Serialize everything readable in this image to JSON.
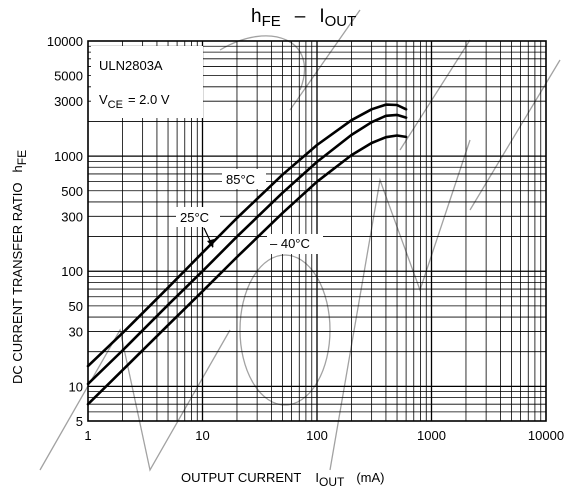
{
  "chart_data": {
    "type": "line",
    "title_main": "h",
    "title_main_sub": "FE",
    "title_sep": "–",
    "title_second": "I",
    "title_second_sub": "OUT",
    "xlabel": "OUTPUT CURRENT",
    "xlabel_symbol": "I",
    "xlabel_symbol_sub": "OUT",
    "xlabel_unit": "(mA)",
    "ylabel": "DC CURRENT TRANSFER RATIO",
    "ylabel_symbol": "h",
    "ylabel_symbol_sub": "FE",
    "x_scale": "log",
    "y_scale": "log",
    "xlim": [
      1,
      10000
    ],
    "ylim": [
      5,
      10000
    ],
    "grid": true,
    "x_ticks": [
      {
        "value": 1,
        "label": "1"
      },
      {
        "value": 10,
        "label": "10"
      },
      {
        "value": 100,
        "label": "100"
      },
      {
        "value": 1000,
        "label": "1000"
      },
      {
        "value": 10000,
        "label": "10000"
      }
    ],
    "y_ticks": [
      {
        "value": 5,
        "label": "5"
      },
      {
        "value": 10,
        "label": "10"
      },
      {
        "value": 30,
        "label": "30"
      },
      {
        "value": 50,
        "label": "50"
      },
      {
        "value": 100,
        "label": "100"
      },
      {
        "value": 300,
        "label": "300"
      },
      {
        "value": 500,
        "label": "500"
      },
      {
        "value": 1000,
        "label": "1000"
      },
      {
        "value": 3000,
        "label": "3000"
      },
      {
        "value": 5000,
        "label": "5000"
      },
      {
        "value": 10000,
        "label": "10000"
      }
    ],
    "annotation": {
      "part": "ULN2803A",
      "condition_symbol": "V",
      "condition_symbol_sub": "CE",
      "condition_value": "= 2.0 V"
    },
    "series": [
      {
        "name": "85°C",
        "x": [
          1,
          2,
          5,
          10,
          20,
          50,
          100,
          200,
          300,
          400,
          500,
          600
        ],
        "y": [
          15,
          29,
          72,
          145,
          290,
          690,
          1250,
          2050,
          2550,
          2800,
          2780,
          2550
        ]
      },
      {
        "name": "25°C",
        "x": [
          1,
          2,
          5,
          10,
          20,
          50,
          100,
          200,
          300,
          400,
          500,
          600
        ],
        "y": [
          10.5,
          20.5,
          51,
          100,
          200,
          480,
          890,
          1530,
          1970,
          2240,
          2280,
          2160
        ]
      },
      {
        "name": "– 40°C",
        "x": [
          1,
          2,
          5,
          10,
          20,
          50,
          100,
          200,
          300,
          400,
          500,
          600
        ],
        "y": [
          7,
          13.8,
          34,
          67,
          133,
          320,
          600,
          1020,
          1300,
          1460,
          1510,
          1470
        ]
      }
    ],
    "series_labels": [
      {
        "series": "85°C",
        "text": "85°C"
      },
      {
        "series": "25°C",
        "text": "25°C"
      },
      {
        "series": "– 40°C",
        "text": "– 40°C"
      }
    ]
  }
}
